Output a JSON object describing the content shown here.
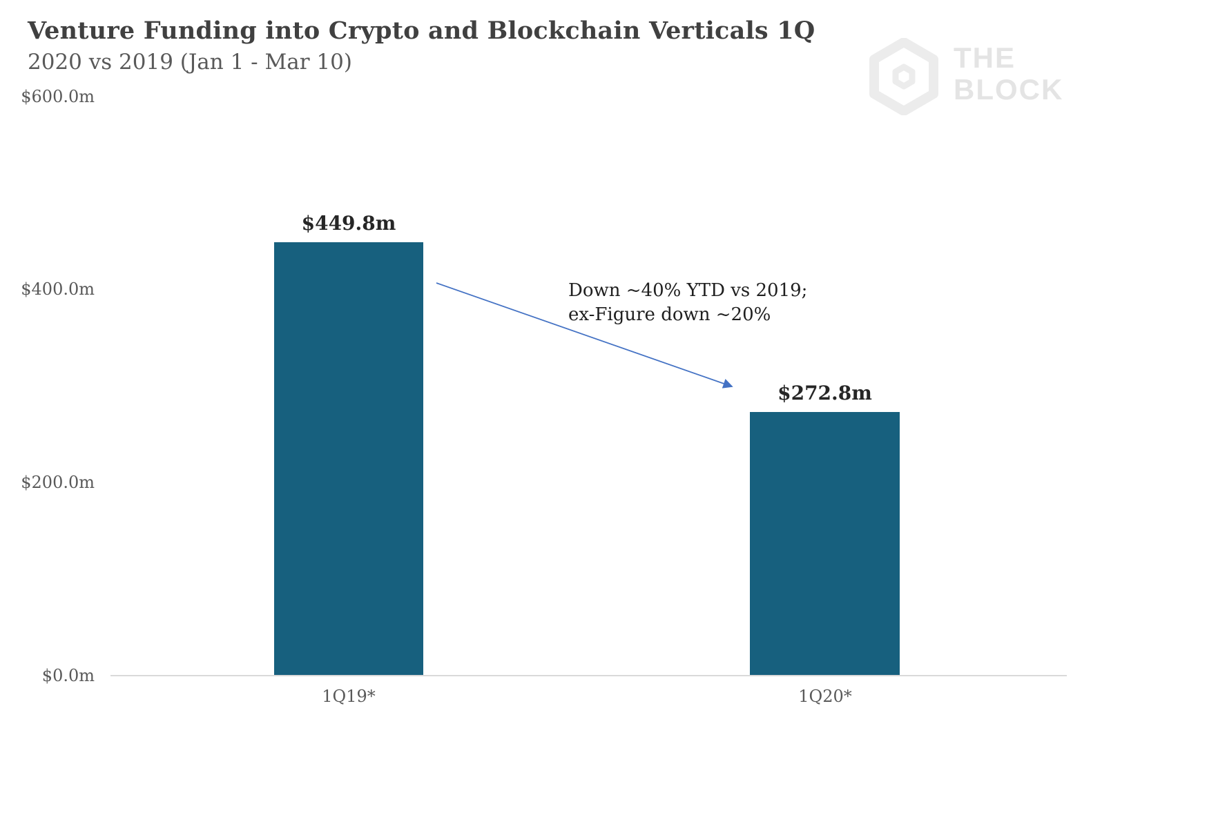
{
  "header": {
    "title": "Venture Funding into Crypto and Blockchain Verticals 1Q",
    "subtitle": "2020 vs 2019 (Jan 1 - Mar 10)"
  },
  "logo": {
    "line1": "THE",
    "line2": "BLOCK",
    "color": "#e4e4e4"
  },
  "chart_data": {
    "type": "bar",
    "title": "Venture Funding into Crypto and Blockchain Verticals 1Q",
    "subtitle": "2020 vs 2019 (Jan 1 - Mar 10)",
    "categories": [
      "1Q19*",
      "1Q20*"
    ],
    "values": [
      449.8,
      272.8
    ],
    "value_labels": [
      "$449.8m",
      "$272.8m"
    ],
    "xlabel": "",
    "ylabel": "",
    "ylim": [
      0,
      600
    ],
    "yticks": [
      0,
      200,
      400,
      600
    ],
    "ytick_labels_top_to_bottom": [
      "$600.0m",
      "$400.0m",
      "$200.0m",
      "$0.0m"
    ],
    "grid": false,
    "legend": false,
    "bar_color": "#17607e",
    "axis_line_color": "#d9d9d9",
    "annotation": {
      "line1": "Down ~40% YTD vs 2019;",
      "line2": "ex-Figure down ~20%",
      "arrow_color": "#4472c4"
    }
  }
}
